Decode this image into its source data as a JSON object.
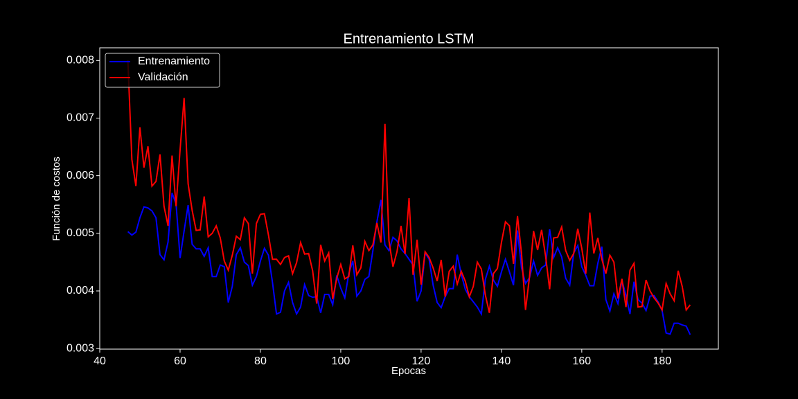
{
  "chart_data": {
    "type": "line",
    "title": "Entrenamiento LSTM",
    "xlabel": "Epocas",
    "ylabel": "Función de costos",
    "x": [
      47,
      48,
      49,
      50,
      51,
      52,
      53,
      54,
      55,
      56,
      57,
      58,
      59,
      60,
      61,
      62,
      63,
      64,
      65,
      66,
      67,
      68,
      69,
      70,
      71,
      72,
      73,
      74,
      75,
      76,
      77,
      78,
      79,
      80,
      81,
      82,
      83,
      84,
      85,
      86,
      87,
      88,
      89,
      90,
      91,
      92,
      93,
      94,
      95,
      96,
      97,
      98,
      99,
      100,
      101,
      102,
      103,
      104,
      105,
      106,
      107,
      108,
      109,
      110,
      111,
      112,
      113,
      114,
      115,
      116,
      117,
      118,
      119,
      120,
      121,
      122,
      123,
      124,
      125,
      126,
      127,
      128,
      129,
      130,
      131,
      132,
      133,
      134,
      135,
      136,
      137,
      138,
      139,
      140,
      141,
      142,
      143,
      144,
      145,
      146,
      147,
      148,
      149,
      150,
      151,
      152,
      153,
      154,
      155,
      156,
      157,
      158,
      159,
      160,
      161,
      162,
      163,
      164,
      165,
      166,
      167,
      168,
      169,
      170,
      171,
      172,
      173,
      174,
      175,
      176,
      177,
      178,
      179,
      180,
      181,
      182,
      183,
      184,
      185,
      186,
      187
    ],
    "series": [
      {
        "name": "Entrenamiento",
        "color": "#0000ff",
        "values": [
          0.00503,
          0.00497,
          0.00502,
          0.00527,
          0.00546,
          0.00544,
          0.00539,
          0.00527,
          0.00463,
          0.00454,
          0.00485,
          0.0057,
          0.00551,
          0.00457,
          0.00504,
          0.00549,
          0.00481,
          0.00473,
          0.00473,
          0.0046,
          0.00475,
          0.00425,
          0.00425,
          0.00445,
          0.00442,
          0.0038,
          0.00408,
          0.00463,
          0.00475,
          0.0045,
          0.00444,
          0.0041,
          0.00425,
          0.00452,
          0.00474,
          0.00462,
          0.00415,
          0.0036,
          0.00363,
          0.004,
          0.00415,
          0.0038,
          0.0036,
          0.00372,
          0.00411,
          0.00392,
          0.00389,
          0.0039,
          0.00362,
          0.00394,
          0.00394,
          0.00376,
          0.00427,
          0.00405,
          0.00388,
          0.0043,
          0.00452,
          0.00391,
          0.004,
          0.0042,
          0.00425,
          0.0047,
          0.0052,
          0.00558,
          0.0048,
          0.0047,
          0.00493,
          0.00487,
          0.00473,
          0.00465,
          0.00455,
          0.00445,
          0.00382,
          0.004,
          0.00466,
          0.00455,
          0.0041,
          0.0038,
          0.00371,
          0.0039,
          0.00404,
          0.00404,
          0.00463,
          0.00429,
          0.00403,
          0.0039,
          0.00381,
          0.00372,
          0.0036,
          0.0042,
          0.00443,
          0.00419,
          0.00408,
          0.00433,
          0.00455,
          0.00433,
          0.0041,
          0.00505,
          0.0044,
          0.00413,
          0.00423,
          0.00452,
          0.00427,
          0.0044,
          0.00445,
          0.00507,
          0.00458,
          0.00475,
          0.00459,
          0.00422,
          0.0041,
          0.00466,
          0.00479,
          0.00442,
          0.00427,
          0.00409,
          0.00409,
          0.00448,
          0.00477,
          0.00385,
          0.00365,
          0.00395,
          0.00378,
          0.00418,
          0.00392,
          0.0036,
          0.00416,
          0.00385,
          0.00379,
          0.00366,
          0.00391,
          0.00392,
          0.00381,
          0.00366,
          0.00327,
          0.00325,
          0.00344,
          0.00344,
          0.00341,
          0.00339,
          0.00324
        ]
      },
      {
        "name": "Validación",
        "color": "#ff0000",
        "values": [
          0.008,
          0.00628,
          0.00582,
          0.00684,
          0.00614,
          0.00651,
          0.00582,
          0.0059,
          0.00637,
          0.00547,
          0.00513,
          0.00635,
          0.00547,
          0.00645,
          0.00735,
          0.00586,
          0.0054,
          0.00505,
          0.00506,
          0.00564,
          0.00494,
          0.005,
          0.00513,
          0.00492,
          0.00452,
          0.00436,
          0.00462,
          0.00495,
          0.00489,
          0.00527,
          0.00517,
          0.0043,
          0.00517,
          0.00533,
          0.00534,
          0.00497,
          0.00455,
          0.00455,
          0.00446,
          0.00458,
          0.00461,
          0.0043,
          0.00449,
          0.00484,
          0.00464,
          0.00465,
          0.00435,
          0.00378,
          0.0048,
          0.00452,
          0.00466,
          0.00386,
          0.00422,
          0.00446,
          0.00421,
          0.00425,
          0.00479,
          0.00428,
          0.0044,
          0.00486,
          0.0047,
          0.0048,
          0.00518,
          0.00484,
          0.0069,
          0.00487,
          0.00442,
          0.00468,
          0.00513,
          0.00464,
          0.00561,
          0.00428,
          0.00489,
          0.00411,
          0.00468,
          0.00458,
          0.0044,
          0.00417,
          0.00454,
          0.0039,
          0.00434,
          0.00443,
          0.00412,
          0.00434,
          0.00417,
          0.0039,
          0.00408,
          0.0045,
          0.00438,
          0.00393,
          0.00362,
          0.0043,
          0.00439,
          0.00484,
          0.0052,
          0.00513,
          0.00447,
          0.0053,
          0.00465,
          0.00367,
          0.00425,
          0.00504,
          0.00471,
          0.00506,
          0.0046,
          0.00403,
          0.00492,
          0.00493,
          0.00511,
          0.0047,
          0.00453,
          0.00465,
          0.00508,
          0.00474,
          0.0043,
          0.00536,
          0.00465,
          0.00492,
          0.00455,
          0.0043,
          0.00462,
          0.0045,
          0.00387,
          0.00421,
          0.00372,
          0.00436,
          0.00448,
          0.00372,
          0.00373,
          0.00419,
          0.004,
          0.00388,
          0.00379,
          0.00367,
          0.00413,
          0.00395,
          0.00383,
          0.00435,
          0.00408,
          0.00367,
          0.00376
        ]
      }
    ],
    "xlim": [
      40,
      194
    ],
    "xticks": [
      40,
      60,
      80,
      100,
      120,
      140,
      160,
      180
    ],
    "ylim": [
      0.00299,
      0.00822
    ],
    "yticks": [
      0.003,
      0.004,
      0.005,
      0.006,
      0.007,
      0.008
    ],
    "legend": "upper left"
  }
}
